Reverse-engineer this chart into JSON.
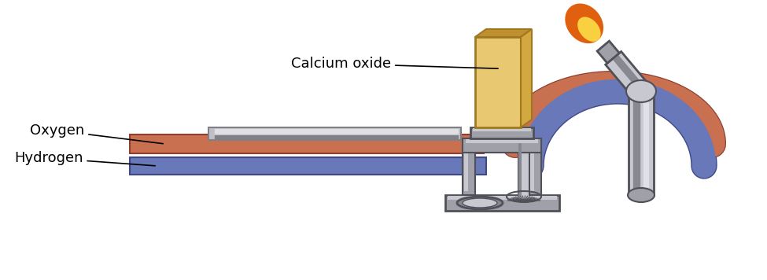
{
  "bg_color": "#ffffff",
  "oxygen_color": "#c87050",
  "hydrogen_color": "#6878b8",
  "oxygen_dark": "#904030",
  "hydrogen_dark": "#404888",
  "tube_gray": "#c0c0c4",
  "tube_gray_dark": "#808088",
  "tube_gray_light": "#e0e0e4",
  "calcium_oxide_color": "#e8c870",
  "calcium_oxide_side": "#d4a840",
  "calcium_oxide_top": "#c09030",
  "calcium_oxide_edge": "#a07820",
  "apparatus_color": "#a0a0a8",
  "apparatus_dark": "#505058",
  "apparatus_mid": "#888890",
  "apparatus_light": "#c8c8d0",
  "flame_outer": "#e06010",
  "flame_mid": "#f09020",
  "flame_inner": "#f8d040",
  "label_oxygen": "Oxygen",
  "label_hydrogen": "Hydrogen",
  "label_calcium_oxide": "Calcium oxide",
  "font_size": 13
}
